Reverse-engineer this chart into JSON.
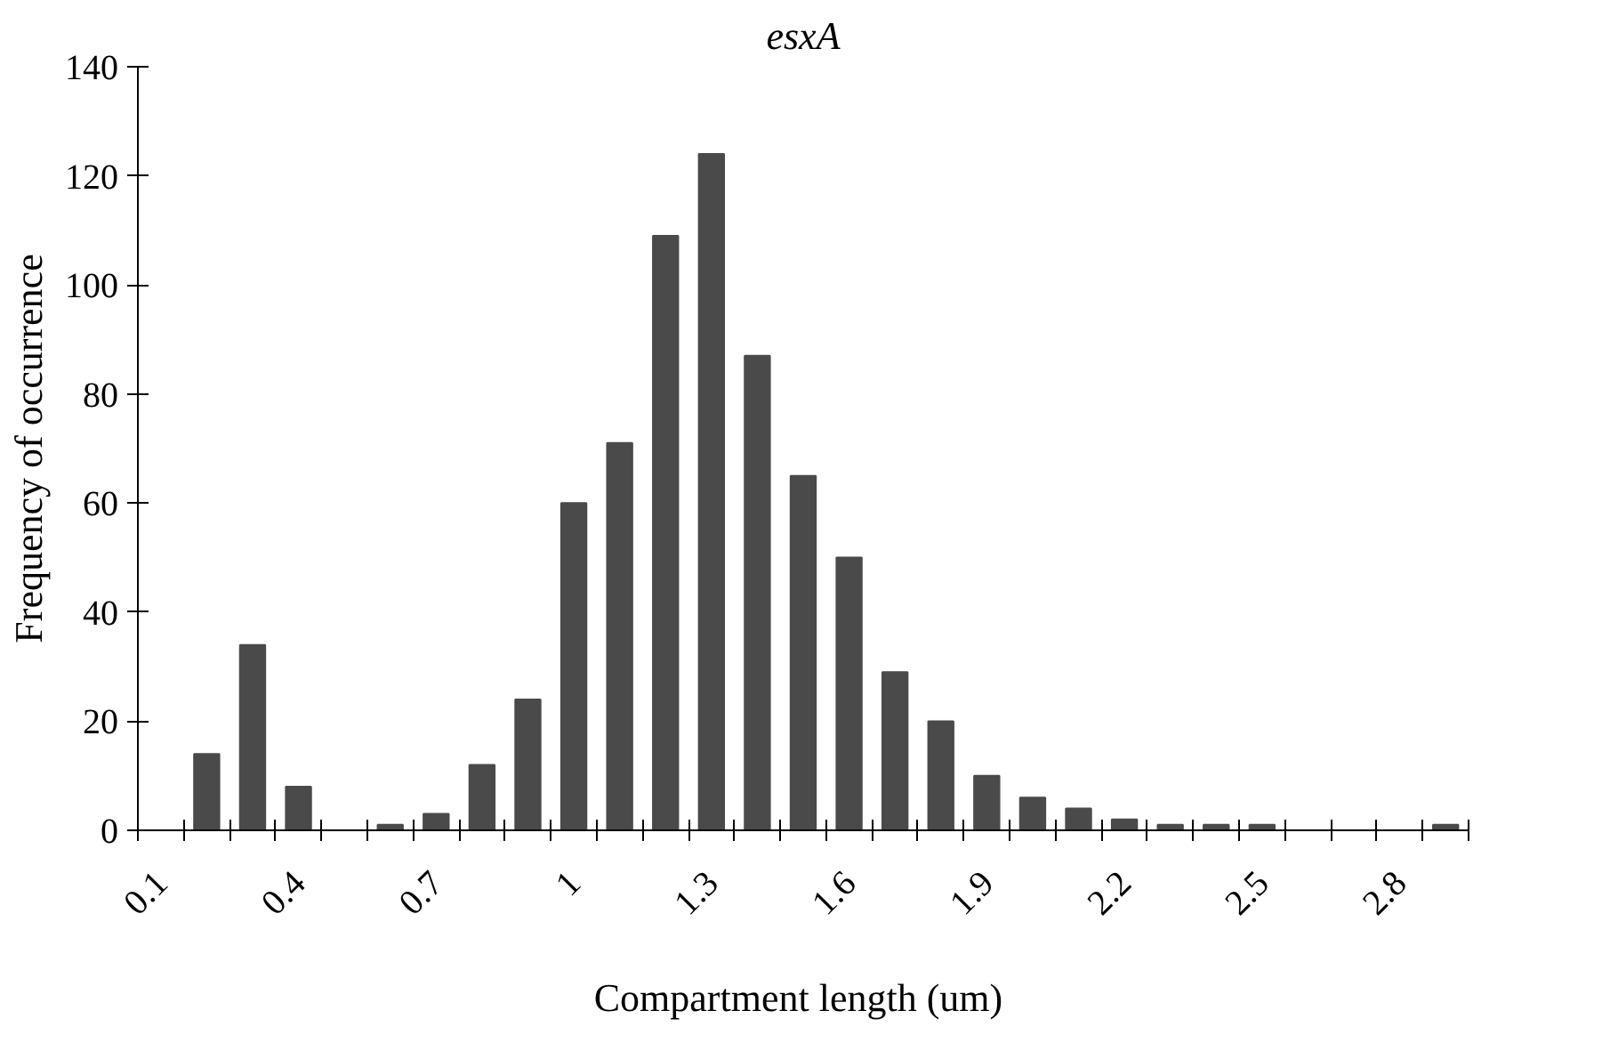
{
  "chart_data": {
    "type": "bar",
    "title": "esxA",
    "xlabel": "Compartment length  (um)",
    "ylabel": "Frequency of occurrence",
    "categories": [
      "0.1",
      null,
      null,
      "0.4",
      null,
      null,
      "0.7",
      null,
      null,
      "1",
      null,
      null,
      "1.3",
      null,
      null,
      "1.6",
      null,
      null,
      "1.9",
      null,
      null,
      "2.2",
      null,
      null,
      "2.5",
      null,
      null,
      "2.8",
      null
    ],
    "values": [
      0,
      14,
      34,
      8,
      0,
      1,
      3,
      12,
      24,
      60,
      71,
      109,
      124,
      87,
      65,
      50,
      29,
      20,
      10,
      6,
      4,
      2,
      1,
      1,
      1,
      0,
      0,
      0,
      1
    ],
    "color": "#4a4a4a",
    "ylim": [
      0,
      140
    ],
    "yticks": [
      0,
      20,
      40,
      60,
      80,
      100,
      120,
      140
    ],
    "grid": false
  }
}
